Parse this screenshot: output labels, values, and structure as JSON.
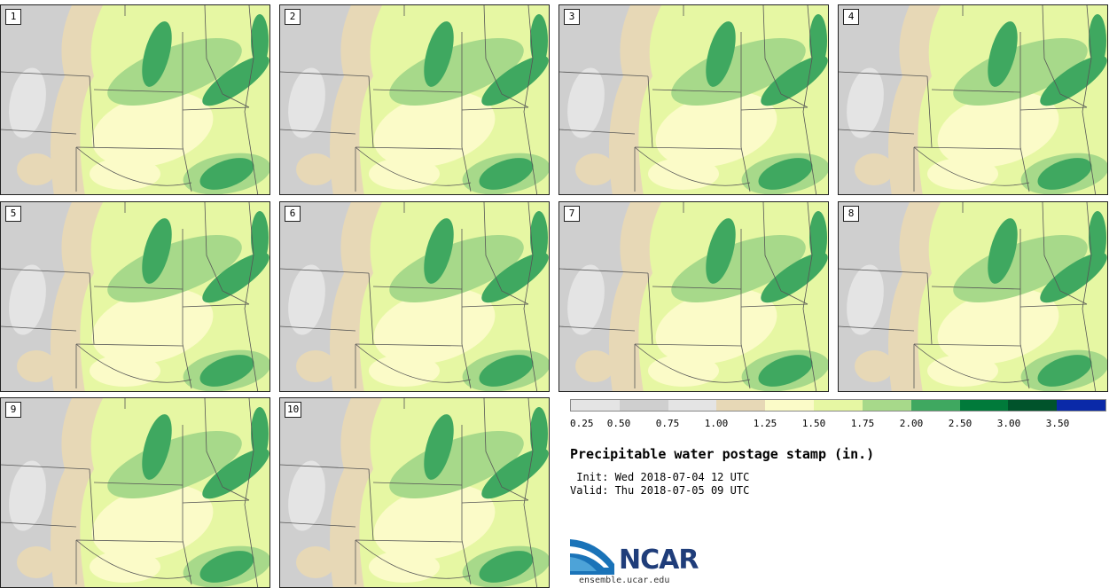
{
  "panels": [
    {
      "label": "1"
    },
    {
      "label": "2"
    },
    {
      "label": "3"
    },
    {
      "label": "4"
    },
    {
      "label": "5"
    },
    {
      "label": "6"
    },
    {
      "label": "7"
    },
    {
      "label": "8"
    },
    {
      "label": "9"
    },
    {
      "label": "10"
    }
  ],
  "legend": {
    "colors": [
      "#e4e4e4",
      "#cfcfcf",
      "#e4e4e4",
      "#e7d8b6",
      "#fbfbc8",
      "#e6f7a3",
      "#a7d98a",
      "#3fa860",
      "#007a3a",
      "#00532b",
      "#0a29a8"
    ],
    "tick_labels": [
      "0.25",
      "0.50",
      "0.75",
      "1.00",
      "1.25",
      "1.50",
      "1.75",
      "2.00",
      "2.50",
      "3.00",
      "3.50"
    ]
  },
  "title": "Precipitable water postage stamp (in.)",
  "init": " Init: Wed 2018-07-04 12 UTC",
  "valid": "Valid: Thu 2018-07-05 09 UTC",
  "logo": {
    "name": "NCAR",
    "url": "ensemble.ucar.edu"
  }
}
